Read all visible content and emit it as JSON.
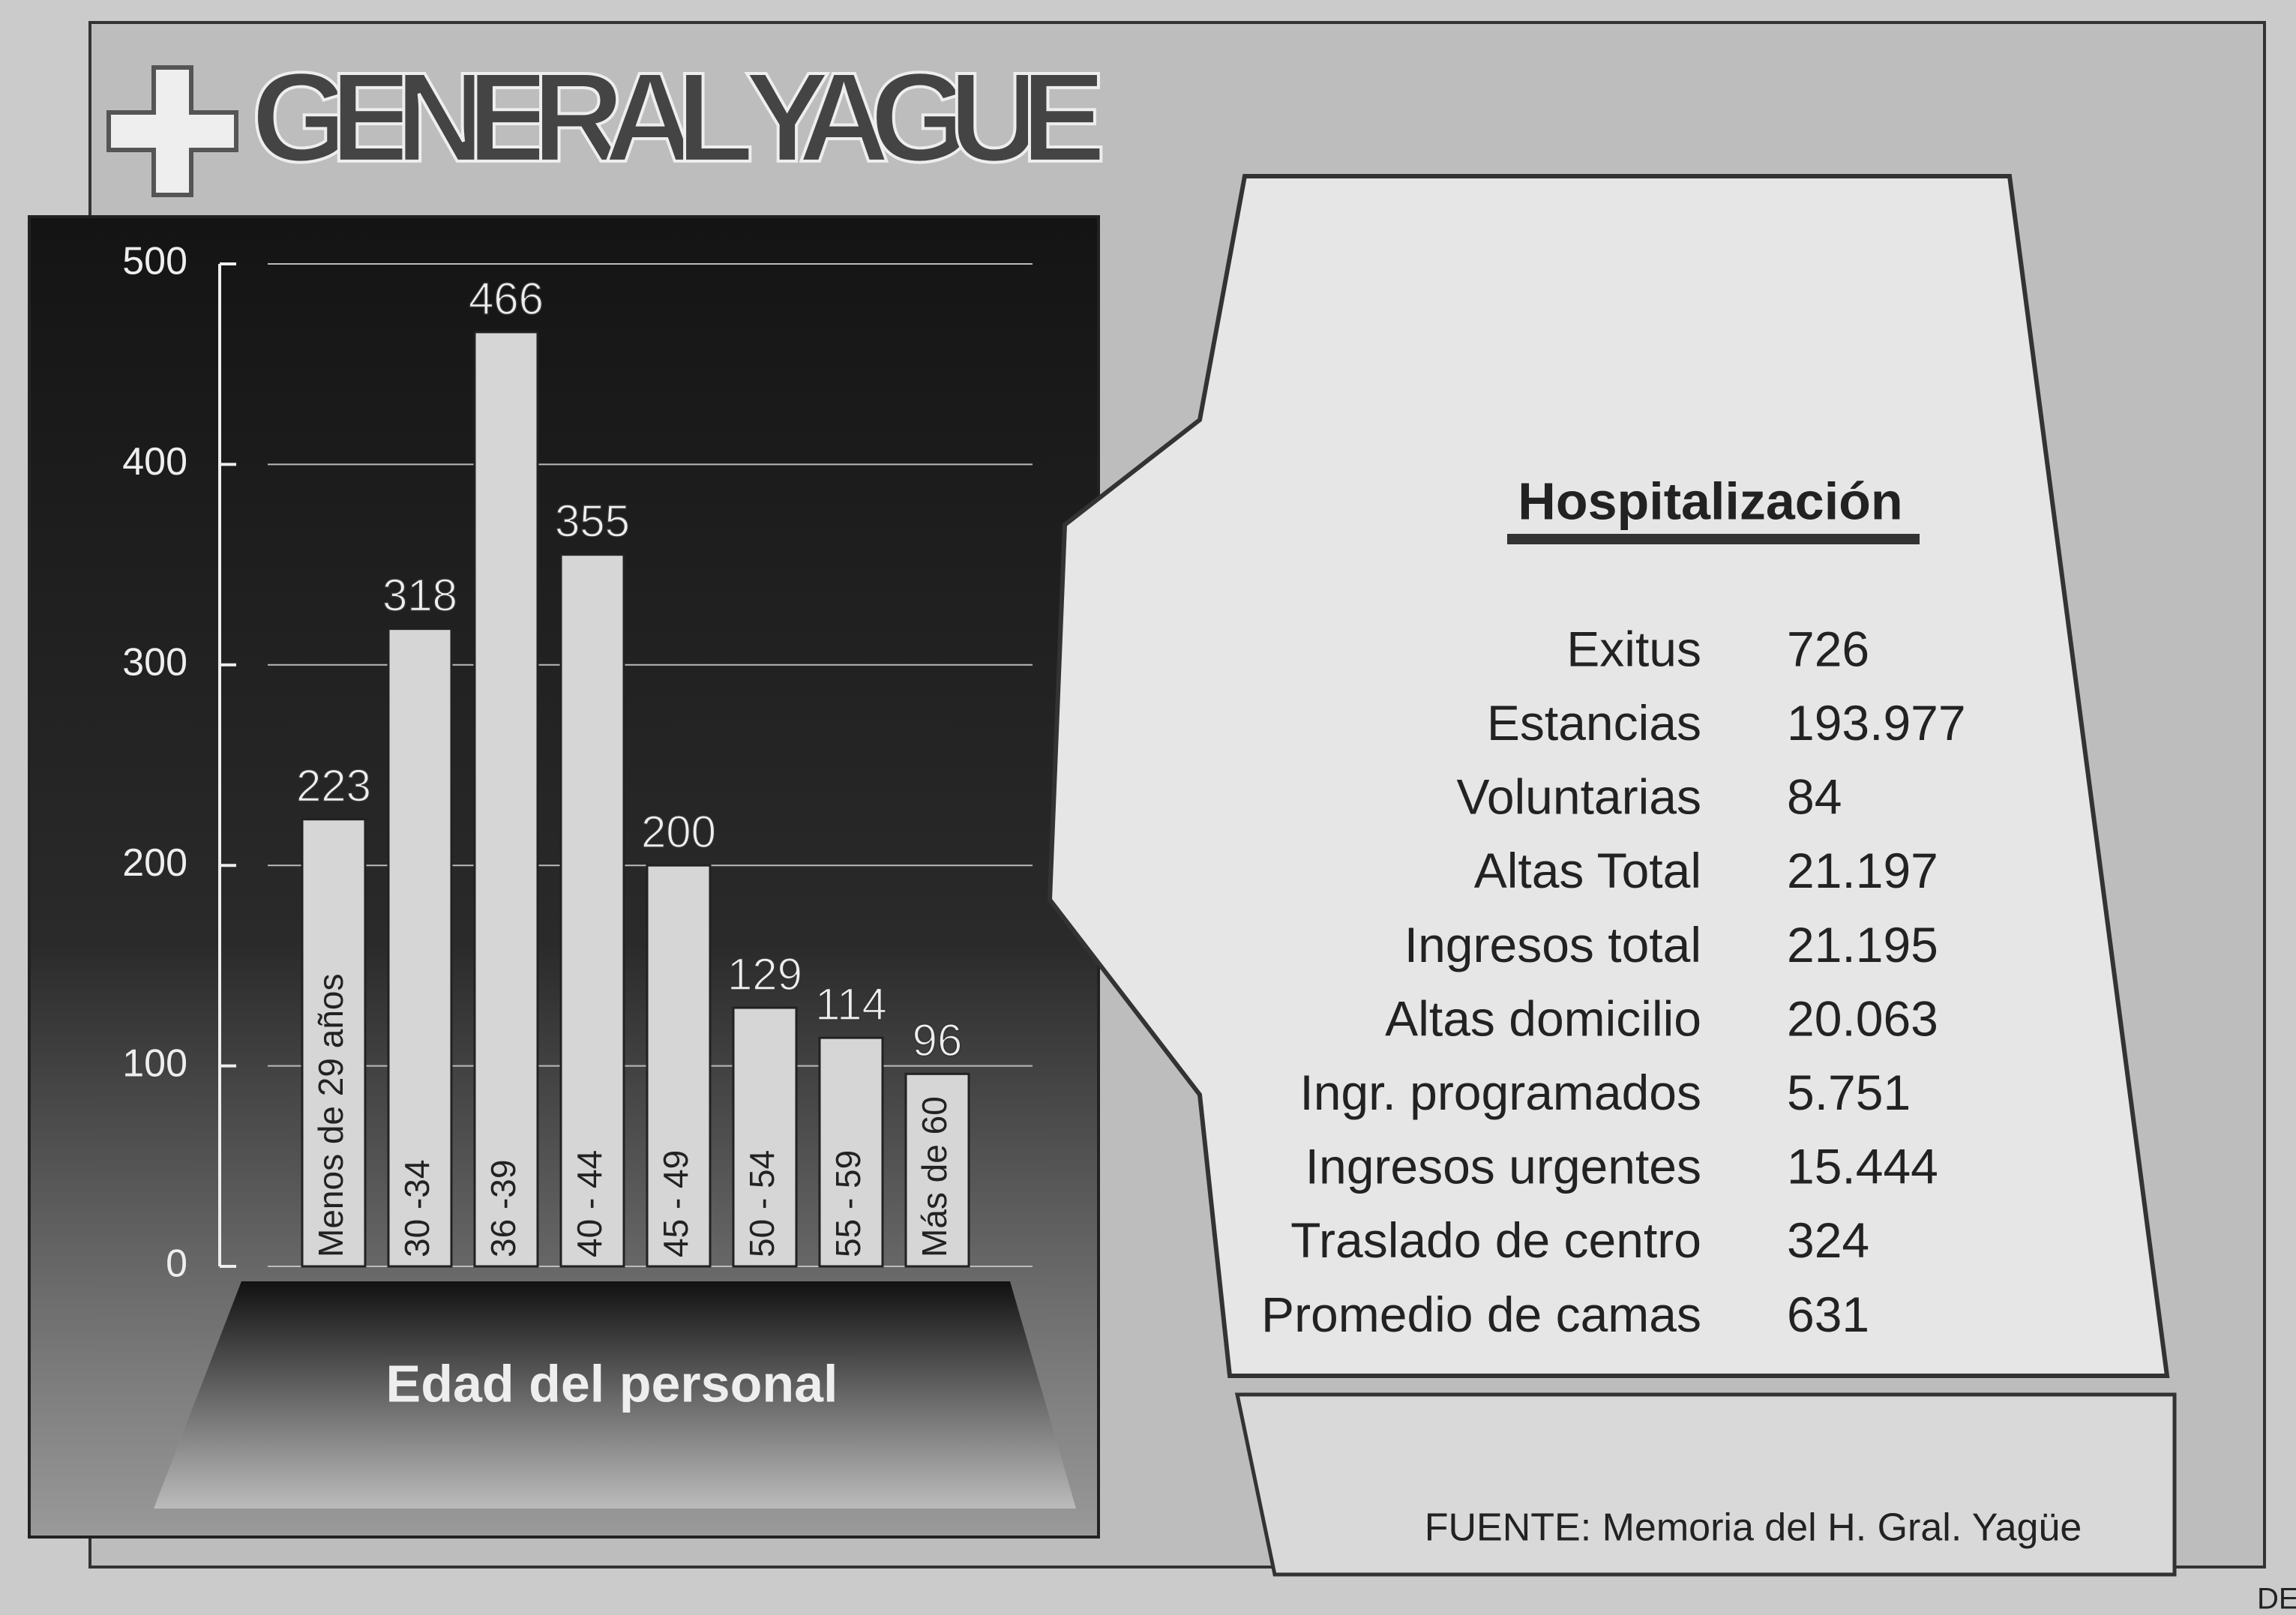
{
  "title": "GENERAL YAGUE",
  "chart_data": {
    "type": "bar",
    "x_label": "Edad del personal",
    "categories": [
      "Menos de 29 años",
      "30 -34",
      "36 -39",
      "40 - 44",
      "45 - 49",
      "50 - 54",
      "55 - 59",
      "Más de 60"
    ],
    "values": [
      223,
      318,
      466,
      355,
      200,
      129,
      114,
      96
    ],
    "color": "#d6d6d6",
    "ylim": [
      0,
      500
    ],
    "yticks": [
      0,
      100,
      200,
      300,
      400,
      500
    ],
    "grid": true
  },
  "table": {
    "title": "Hospitalización",
    "rows": [
      [
        "Exitus",
        "726"
      ],
      [
        "Estancias",
        "193.977"
      ],
      [
        "Voluntarias",
        "84"
      ],
      [
        "Altas Total",
        "21.197"
      ],
      [
        "Ingresos total",
        "21.195"
      ],
      [
        "Altas domicilio",
        "20.063"
      ],
      [
        "Ingr. programados",
        "5.751"
      ],
      [
        "Ingresos urgentes",
        "15.444"
      ],
      [
        "Traslado de centro",
        "324"
      ],
      [
        "Promedio de camas",
        "631"
      ]
    ]
  },
  "source": "FUENTE: Memoria del H. Gral. Yagüe",
  "corner_text": "DE"
}
